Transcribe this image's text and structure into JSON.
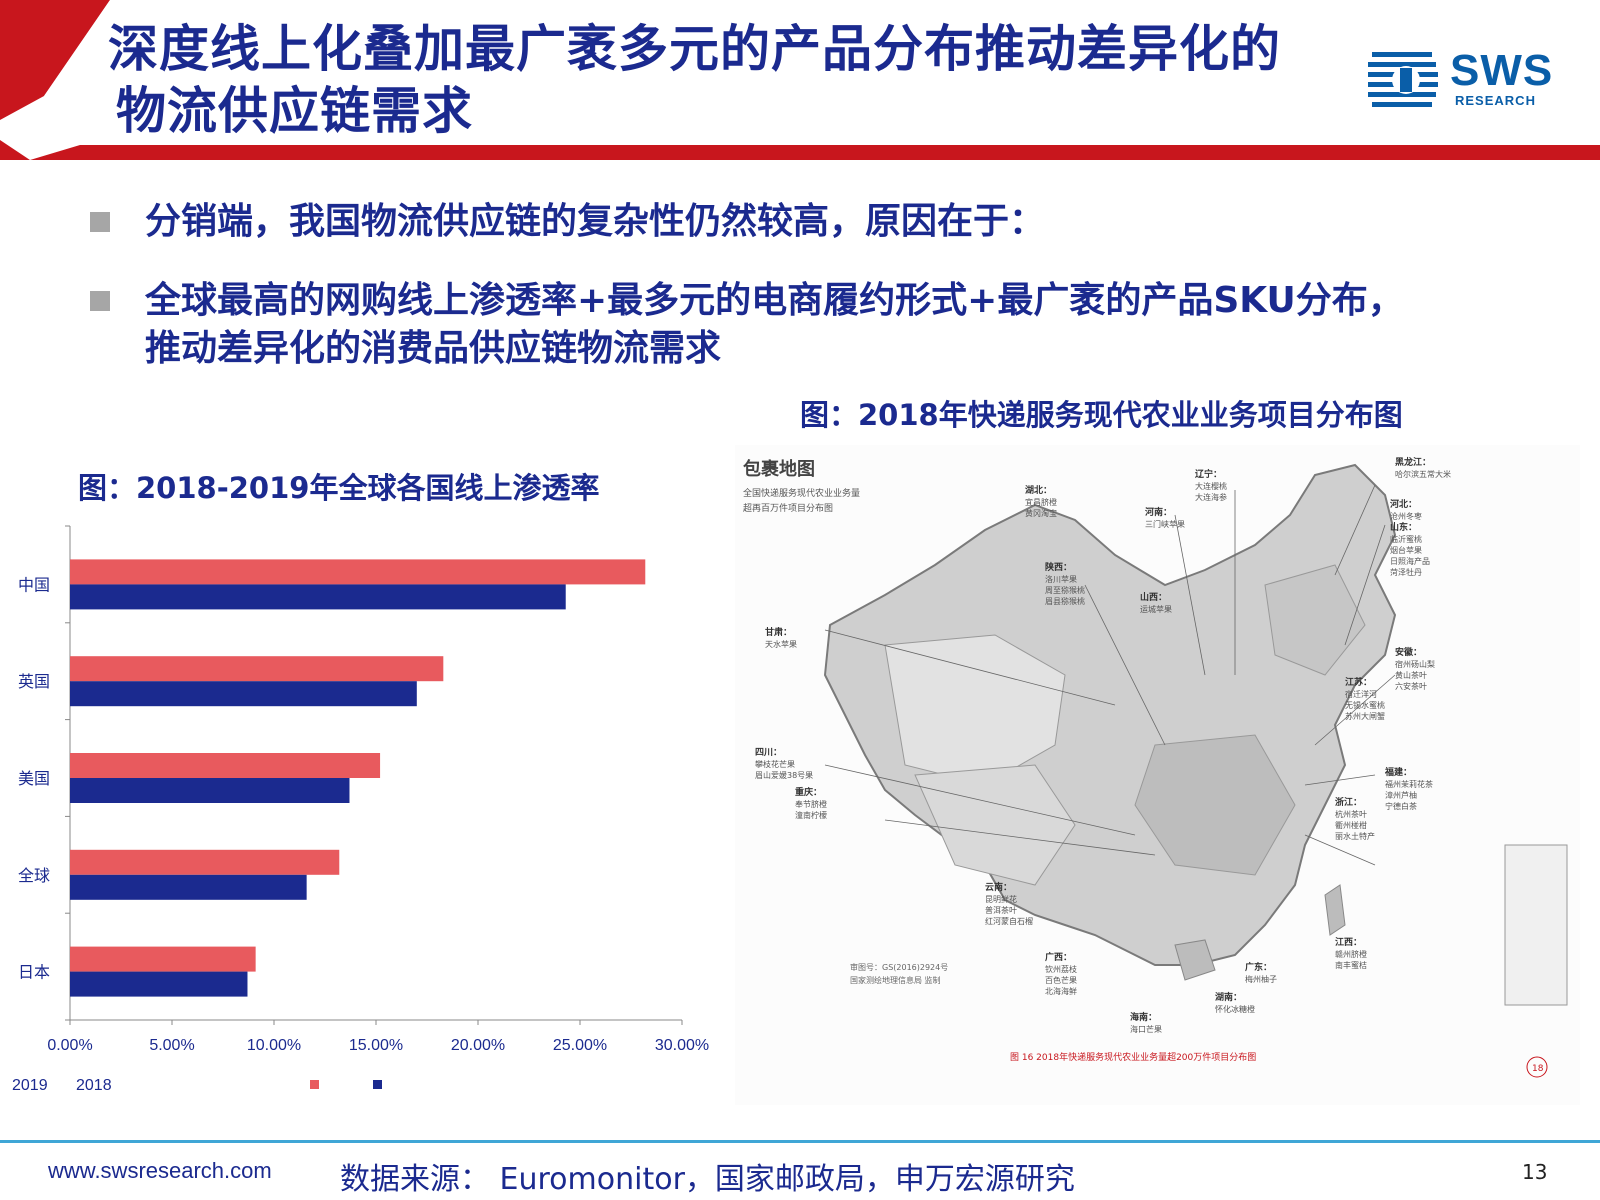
{
  "header": {
    "title_line1": "深度线上化叠加最广袤多元的产品分布推动差异化的",
    "title_line2": "物流供应链需求",
    "logo_text": "SWS",
    "logo_sub": "RESEARCH",
    "colors": {
      "red": "#c8161d",
      "navy": "#1b2a8f",
      "logo_blue": "#0a5ea8"
    }
  },
  "bullets": [
    {
      "text": "分销端，我国物流供应链的复杂性仍然较高，原因在于："
    },
    {
      "line1": "全球最高的网购线上渗透率+最多元的电商履约形式+最广袤的产品SKU分布，",
      "line2": "推动差异化的消费品供应链物流需求"
    }
  ],
  "bar_chart": {
    "caption": "图：2018-2019年全球各国线上渗透率",
    "legend": [
      {
        "label": "2019",
        "color": "#e85a5e"
      },
      {
        "label": "2018",
        "color": "#1b2a8f"
      }
    ]
  },
  "map": {
    "caption": "图：2018年快递服务现代农业业务项目分布图",
    "title": "包裹地图",
    "subtitle_line1": "全国快递服务现代农业业务量",
    "subtitle_line2": "超再百万件项目分布图",
    "figure_note": "图 16  2018年快递服务现代农业业务量超200万件项目分布图",
    "page_badge": "18",
    "approval_line1": "审图号：GS(2016)2924号",
    "approval_line2": "国家测绘地理信息局 监制",
    "regions": [
      {
        "name": "辽宁：",
        "items": "大连樱桃\n大连海参"
      },
      {
        "name": "黑龙江：",
        "items": "哈尔滨五常大米"
      },
      {
        "name": "湖北：",
        "items": "宜昌脐橙\n黄冈淘宝"
      },
      {
        "name": "河南：",
        "items": "三门峡苹果"
      },
      {
        "name": "河北：",
        "items": "沧州冬枣"
      },
      {
        "name": "陕西：",
        "items": "洛川苹果\n周至猕猴桃\n眉县猕猴桃"
      },
      {
        "name": "山西：",
        "items": "运城苹果"
      },
      {
        "name": "山东：",
        "items": "临沂蜜桃\n烟台苹果\n日照海产品\n菏泽牡丹"
      },
      {
        "name": "甘肃：",
        "items": "天水苹果"
      },
      {
        "name": "安徽：",
        "items": "宿州砀山梨\n黄山茶叶\n六安茶叶"
      },
      {
        "name": "江苏：",
        "items": "宿迁洋河\n无锡水蜜桃\n苏州大闸蟹"
      },
      {
        "name": "四川：",
        "items": "攀枝花芒果\n眉山爱媛38号果"
      },
      {
        "name": "福建：",
        "items": "福州茉莉花茶\n漳州芦柚\n宁德白茶"
      },
      {
        "name": "重庆：",
        "items": "奉节脐橙\n潼南柠檬"
      },
      {
        "name": "浙江：",
        "items": "杭州茶叶\n衢州椪柑\n丽水土特产"
      },
      {
        "name": "云南：",
        "items": "昆明鲜花\n普洱茶叶\n红河蒙自石榴"
      },
      {
        "name": "广西：",
        "items": "钦州荔枝\n百色芒果\n北海海鲜"
      },
      {
        "name": "广东：",
        "items": "梅州柚子"
      },
      {
        "name": "湖南：",
        "items": "怀化冰糖橙"
      },
      {
        "name": "海南：",
        "items": "海口芒果"
      },
      {
        "name": "江西：",
        "items": "赣州脐橙\n南丰蜜桔"
      }
    ]
  },
  "footer": {
    "url": "www.swsresearch.com",
    "source": "数据来源： Euromonitor，国家邮政局，申万宏源研究",
    "page": "13"
  },
  "chart_data": {
    "type": "bar",
    "orientation": "horizontal",
    "title": "",
    "categories": [
      "中国",
      "英国",
      "美国",
      "全球",
      "日本"
    ],
    "series": [
      {
        "name": "2019",
        "color": "#e85a5e",
        "values": [
          0.282,
          0.183,
          0.152,
          0.132,
          0.091
        ]
      },
      {
        "name": "2018",
        "color": "#1b2a8f",
        "values": [
          0.243,
          0.17,
          0.137,
          0.116,
          0.087
        ]
      }
    ],
    "xlim": [
      0,
      0.3
    ],
    "xticks": [
      "0.00%",
      "5.00%",
      "10.00%",
      "15.00%",
      "20.00%",
      "25.00%",
      "30.00%"
    ],
    "xlabel": "",
    "ylabel": "",
    "grid": false,
    "legend_position": "bottom-left"
  }
}
